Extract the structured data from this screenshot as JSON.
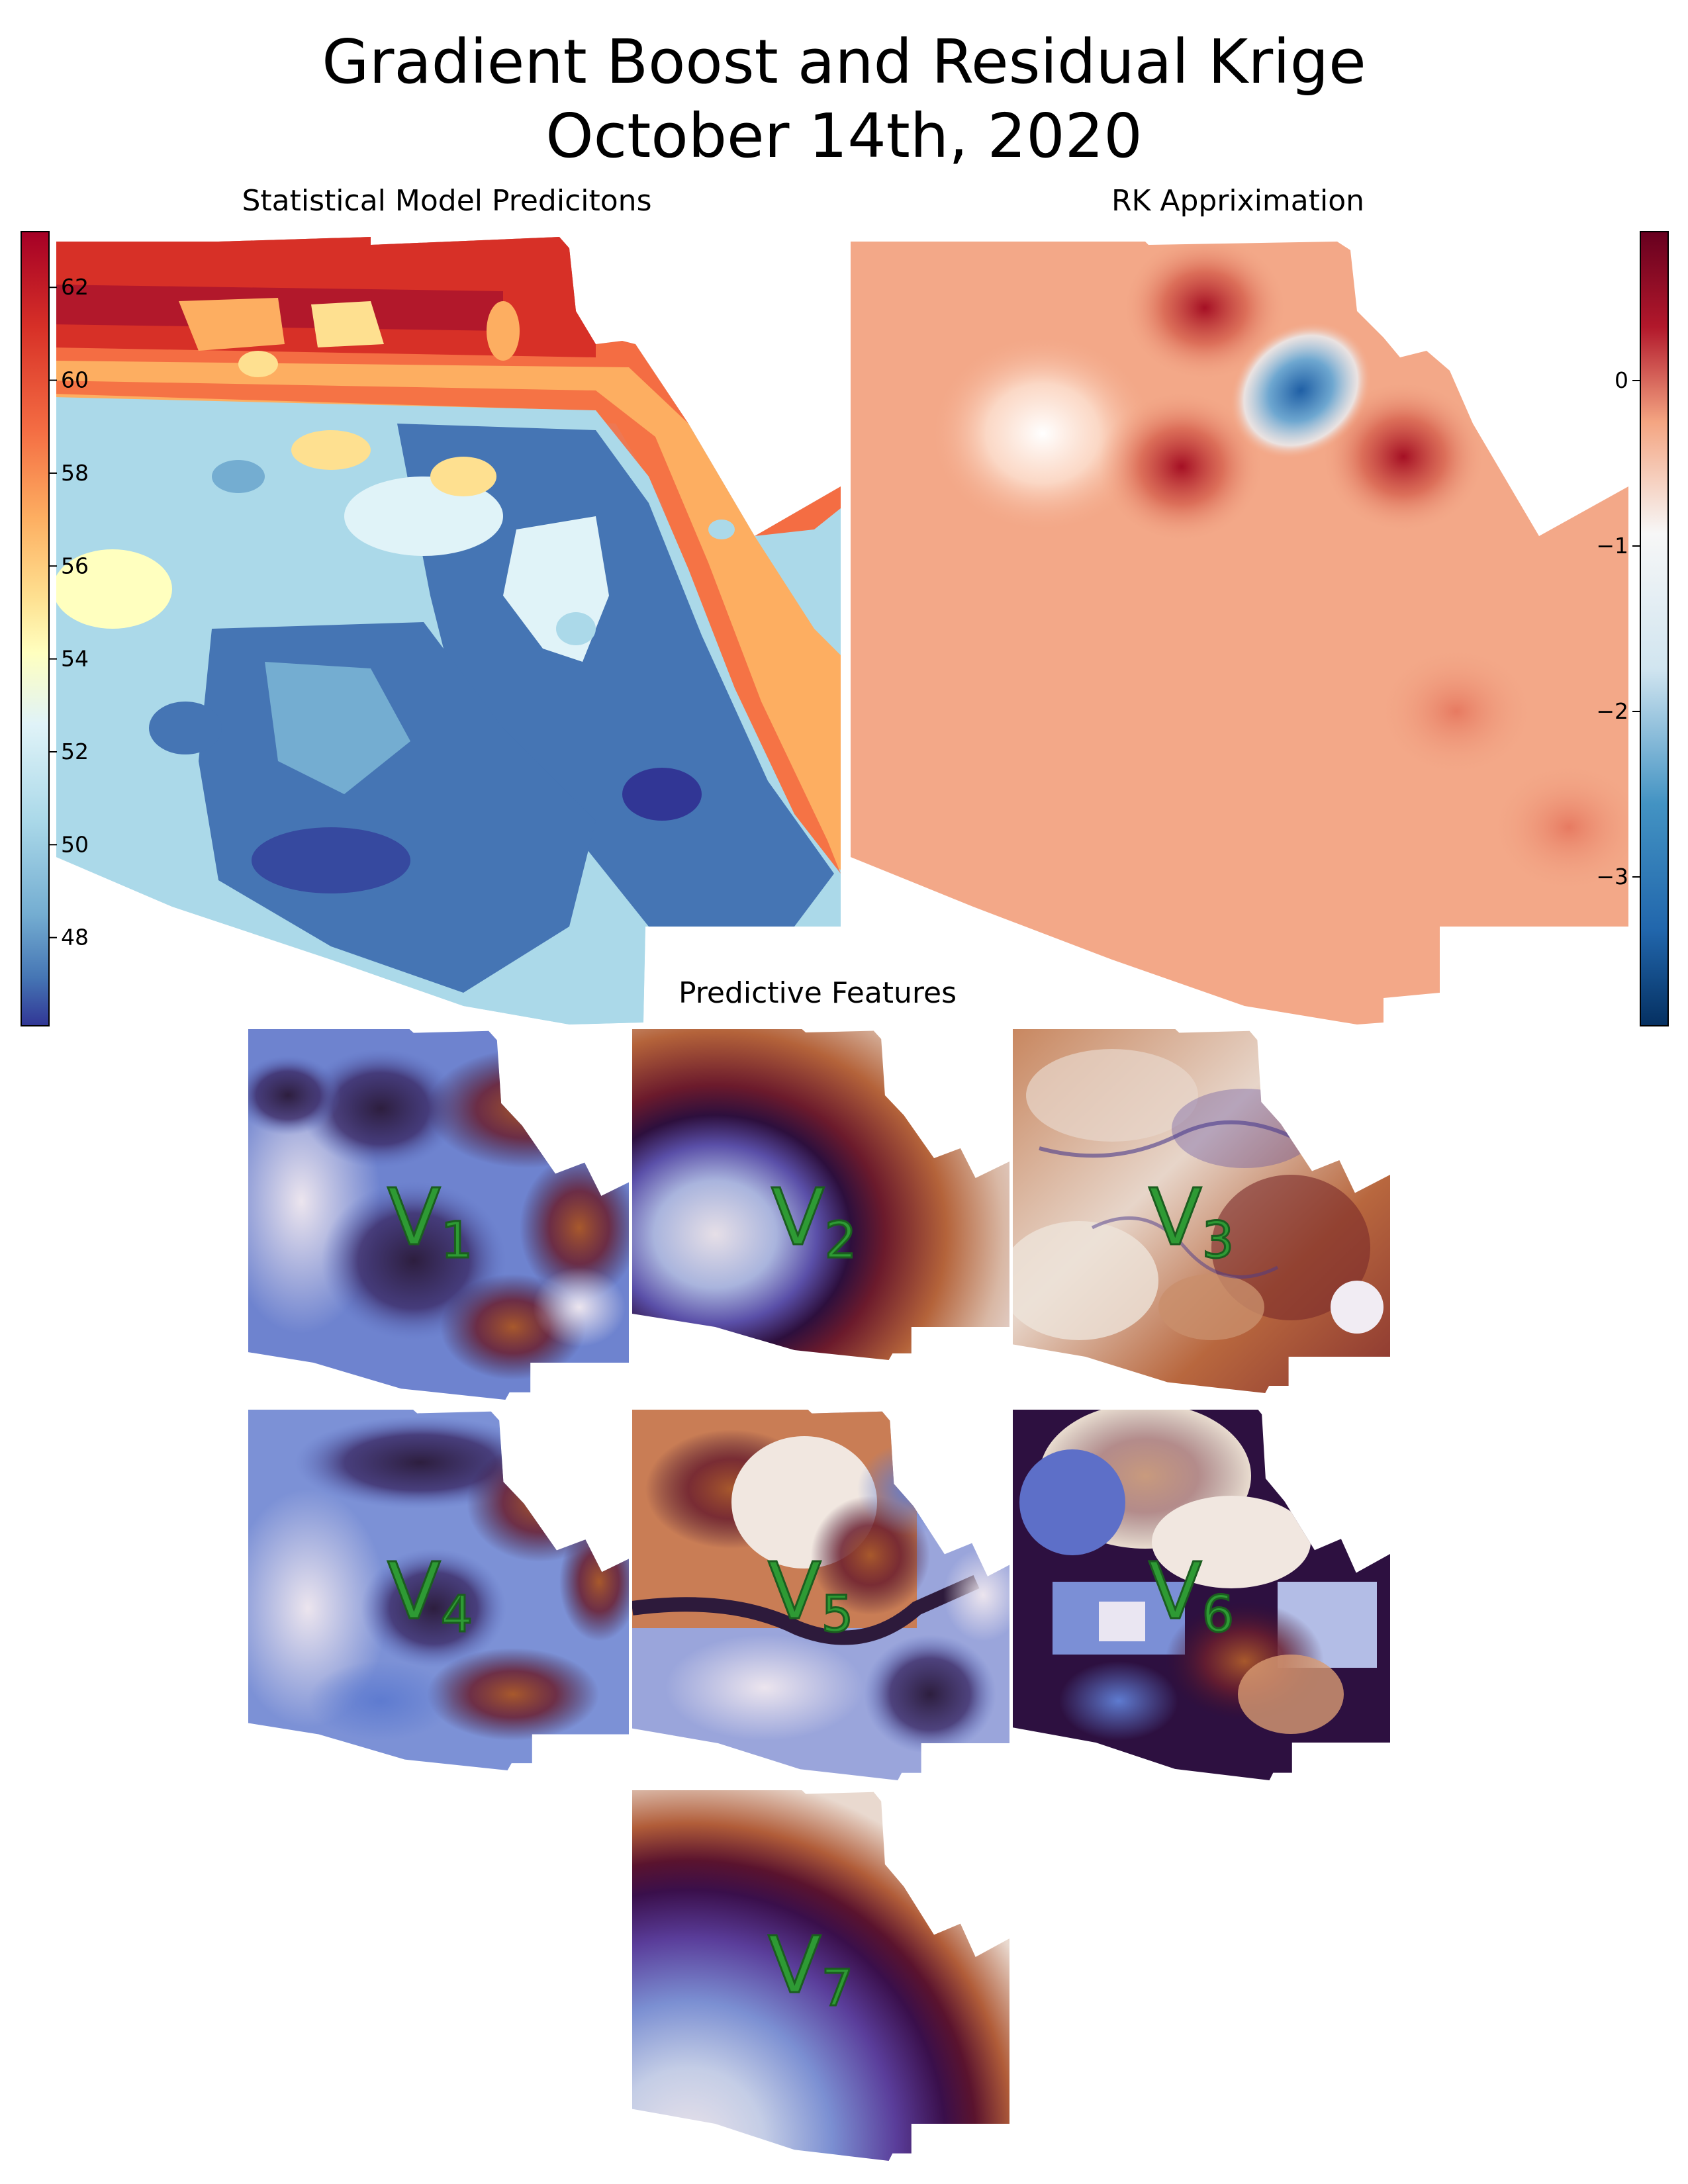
{
  "title_line1": "Gradient Boost and Residual Krige",
  "title_line2": "October 14th, 2020",
  "left_panel": {
    "title": "Statistical Model Predicitons",
    "colorbar_ticks": [
      "62",
      "60",
      "58",
      "56",
      "54",
      "52",
      "50",
      "48"
    ],
    "colorbar_tick_values": [
      62,
      60,
      58,
      56,
      54,
      52,
      50,
      48
    ],
    "colorbar_range": [
      46.1,
      63.2
    ],
    "colormap": "RdYlBu_r",
    "colors": {
      "high": "#a50026",
      "mid": "#ffffbf",
      "low": "#313695"
    }
  },
  "right_panel": {
    "title": "RK Appriximation",
    "colorbar_ticks": [
      "0",
      "−1",
      "−2",
      "−3"
    ],
    "colorbar_tick_values": [
      0,
      -1,
      -2,
      -3
    ],
    "colorbar_range": [
      -3.9,
      0.9
    ],
    "colormap": "RdBu_r",
    "colors": {
      "high": "#67001f",
      "mid": "#f7f7f7",
      "low": "#053061",
      "background": "#f3a888"
    }
  },
  "features_panel": {
    "title": "Predictive Features",
    "colormap": "twilight",
    "items": [
      {
        "letter": "V",
        "subscript": "1"
      },
      {
        "letter": "V",
        "subscript": "2"
      },
      {
        "letter": "V",
        "subscript": "3"
      },
      {
        "letter": "V",
        "subscript": "4"
      },
      {
        "letter": "V",
        "subscript": "5"
      },
      {
        "letter": "V",
        "subscript": "6"
      },
      {
        "letter": "V",
        "subscript": "7"
      }
    ]
  }
}
